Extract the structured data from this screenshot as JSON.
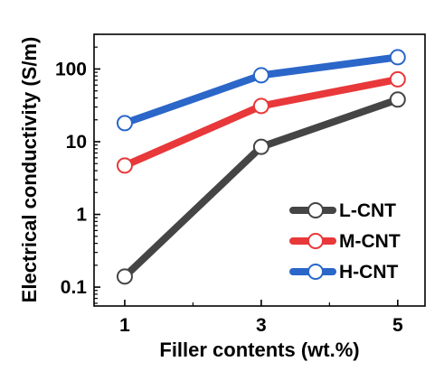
{
  "chart_data": {
    "type": "line",
    "xlabel": "Filler contents (wt.%)",
    "ylabel": "Electrical conductivity (S/m)",
    "y_scale": "log",
    "ylim": [
      0.055,
      300
    ],
    "xlim": [
      0.55,
      5.4
    ],
    "x_ticks": [
      1,
      3,
      5
    ],
    "x_tick_labels": [
      "1",
      "3",
      "5"
    ],
    "x_minor_ticks": [
      2,
      4
    ],
    "y_ticks": [
      0.1,
      1,
      10,
      100
    ],
    "y_tick_labels": [
      "0.1",
      "1",
      "10",
      "100"
    ],
    "legend_position": "bottom-right",
    "grid": false,
    "series": [
      {
        "name": "L-CNT",
        "color": "#454545",
        "x": [
          1,
          3,
          5
        ],
        "values": [
          0.14,
          8.5,
          38
        ]
      },
      {
        "name": "M-CNT",
        "color": "#e8383a",
        "x": [
          1,
          3,
          5
        ],
        "values": [
          4.7,
          31,
          72
        ]
      },
      {
        "name": "H-CNT",
        "color": "#2b66c9",
        "x": [
          1,
          3,
          5
        ],
        "values": [
          18,
          82,
          145
        ]
      }
    ]
  }
}
